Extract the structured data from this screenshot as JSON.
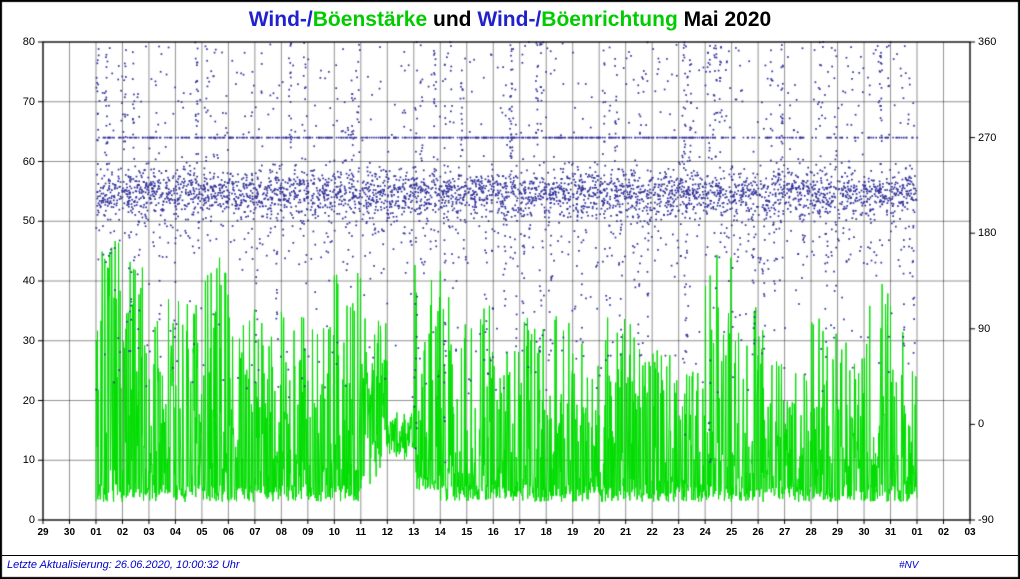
{
  "title": {
    "segments": [
      {
        "text": "Wind-/",
        "color": "#2222cc"
      },
      {
        "text": "Böenstärke",
        "color": "#00cc00"
      },
      {
        "text": " und ",
        "color": "#000000"
      },
      {
        "text": "Wind-/",
        "color": "#2222cc"
      },
      {
        "text": "Böenrichtung",
        "color": "#00cc00"
      },
      {
        "text": " Mai 2020",
        "color": "#000000"
      }
    ]
  },
  "footer": {
    "last_update": "Letzte Aktualisierung: 26.06.2020, 10:00:32 Uhr",
    "nv_label": "#NV",
    "text_color": "#0000cc"
  },
  "chart_data": {
    "type": "line+scatter",
    "title": "Wind-/Böenstärke und Wind-/Böenrichtung Mai 2020",
    "grid": true,
    "x_tick_labels": [
      "29",
      "30",
      "01",
      "02",
      "03",
      "04",
      "05",
      "06",
      "07",
      "08",
      "09",
      "10",
      "11",
      "12",
      "13",
      "14",
      "15",
      "16",
      "17",
      "18",
      "19",
      "20",
      "21",
      "22",
      "23",
      "24",
      "25",
      "26",
      "27",
      "28",
      "29",
      "30",
      "31",
      "01",
      "02",
      "03"
    ],
    "left_axis": {
      "range": [
        0,
        80
      ],
      "ticks": [
        0,
        10,
        20,
        30,
        40,
        50,
        60,
        70,
        80
      ]
    },
    "right_axis": {
      "range": [
        -90,
        360
      ],
      "ticks": [
        -90,
        0,
        90,
        180,
        270,
        360
      ]
    },
    "series": [
      {
        "name": "Wind-/Böenstärke",
        "type": "line",
        "axis": "left",
        "color": "#00dd00",
        "daily_envelope": [
          {
            "day": 1,
            "lo": 3,
            "hi": 47
          },
          {
            "day": 2,
            "lo": 3,
            "hi": 44
          },
          {
            "day": 3,
            "lo": 3,
            "hi": 40
          },
          {
            "day": 4,
            "lo": 3,
            "hi": 38
          },
          {
            "day": 5,
            "lo": 3,
            "hi": 44
          },
          {
            "day": 6,
            "lo": 3,
            "hi": 36
          },
          {
            "day": 7,
            "lo": 3,
            "hi": 34
          },
          {
            "day": 8,
            "lo": 3,
            "hi": 38
          },
          {
            "day": 9,
            "lo": 3,
            "hi": 35
          },
          {
            "day": 10,
            "lo": 3,
            "hi": 42
          },
          {
            "day": 11,
            "lo": 6,
            "hi": 34
          },
          {
            "day": 12,
            "lo": 10,
            "hi": 18
          },
          {
            "day": 13,
            "lo": 5,
            "hi": 45
          },
          {
            "day": 14,
            "lo": 3,
            "hi": 42
          },
          {
            "day": 15,
            "lo": 3,
            "hi": 36
          },
          {
            "day": 16,
            "lo": 3,
            "hi": 30
          },
          {
            "day": 17,
            "lo": 3,
            "hi": 34
          },
          {
            "day": 18,
            "lo": 3,
            "hi": 36
          },
          {
            "day": 19,
            "lo": 3,
            "hi": 30
          },
          {
            "day": 20,
            "lo": 3,
            "hi": 36
          },
          {
            "day": 21,
            "lo": 3,
            "hi": 33
          },
          {
            "day": 22,
            "lo": 3,
            "hi": 30
          },
          {
            "day": 23,
            "lo": 3,
            "hi": 28
          },
          {
            "day": 24,
            "lo": 3,
            "hi": 46
          },
          {
            "day": 25,
            "lo": 3,
            "hi": 36
          },
          {
            "day": 26,
            "lo": 3,
            "hi": 33
          },
          {
            "day": 27,
            "lo": 3,
            "hi": 30
          },
          {
            "day": 28,
            "lo": 3,
            "hi": 36
          },
          {
            "day": 29,
            "lo": 3,
            "hi": 30
          },
          {
            "day": 30,
            "lo": 3,
            "hi": 44
          },
          {
            "day": 31,
            "lo": 3,
            "hi": 32
          }
        ]
      },
      {
        "name": "Wind-/Böenrichtung",
        "type": "scatter",
        "axis": "right",
        "color": "#32329b",
        "band": {
          "center": 218,
          "sd": 11
        },
        "line_at": 270,
        "points_per_day": 150,
        "seed": 42,
        "tall_streak_days": [
          1,
          2,
          4,
          5,
          8,
          10,
          13,
          14,
          16,
          17,
          20,
          23,
          24,
          26,
          28,
          30
        ],
        "low_streak_days": [
          2,
          3,
          7,
          14,
          15,
          16,
          17,
          18,
          19,
          20,
          21,
          23,
          25,
          26,
          28,
          31
        ],
        "full_column_days": [
          13,
          14,
          23,
          24
        ]
      }
    ]
  }
}
